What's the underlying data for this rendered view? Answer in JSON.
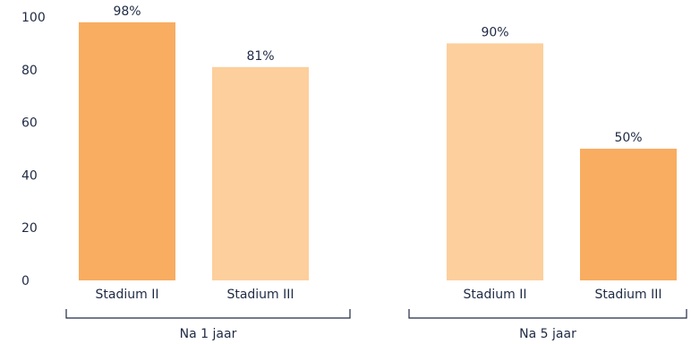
{
  "chart_data": {
    "type": "bar",
    "ylim": [
      0,
      100
    ],
    "yticks": [
      0,
      20,
      40,
      60,
      80,
      100
    ],
    "colors": {
      "strong": "#f8ad61",
      "light": "#fccf9c",
      "text": "#1f2a44"
    },
    "groups": [
      {
        "label": "Na 1 jaar",
        "bars": [
          {
            "category": "Stadium II",
            "value": 98,
            "label": "98%",
            "shade": "strong"
          },
          {
            "category": "Stadium III",
            "value": 81,
            "label": "81%",
            "shade": "light"
          }
        ]
      },
      {
        "label": "Na 5 jaar",
        "bars": [
          {
            "category": "Stadium II",
            "value": 90,
            "label": "90%",
            "shade": "light"
          },
          {
            "category": "Stadium III",
            "value": 50,
            "label": "50%",
            "shade": "strong"
          }
        ]
      }
    ]
  }
}
